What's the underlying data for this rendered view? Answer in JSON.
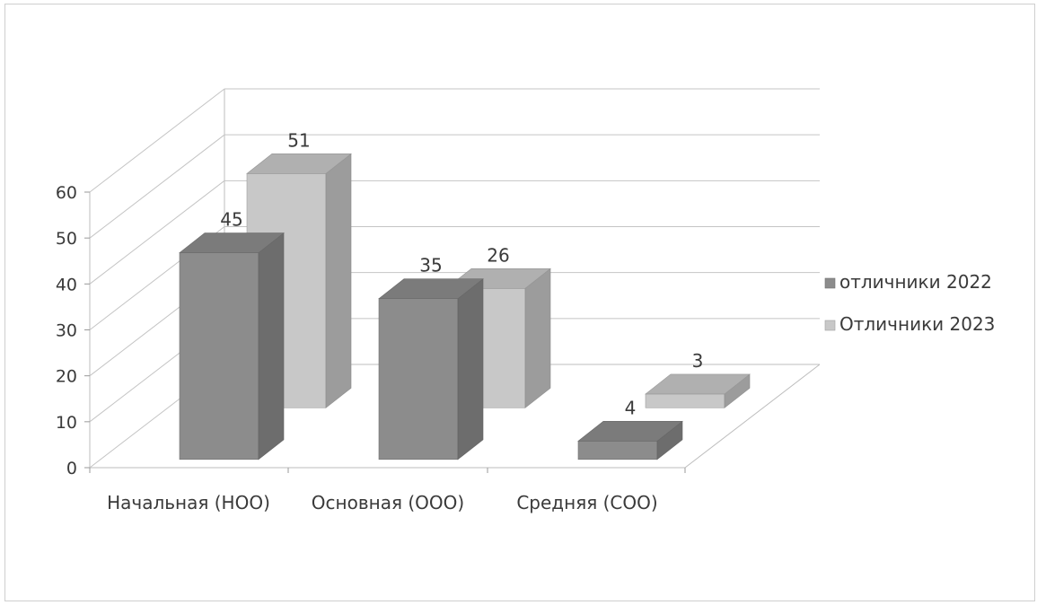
{
  "chart_data": {
    "type": "bar",
    "categories": [
      "Начальная (НОО)",
      "Основная (ООО)",
      "Средняя (СОО)"
    ],
    "series": [
      {
        "name": "отличники 2022",
        "values": [
          45,
          35,
          4
        ],
        "color": "#8c8c8c"
      },
      {
        "name": "Отличники 2023",
        "values": [
          51,
          26,
          3
        ],
        "color": "#c8c8c8"
      }
    ],
    "ylim": [
      0,
      60
    ],
    "yticks": [
      "0",
      "10",
      "20",
      "30",
      "40",
      "50",
      "60"
    ],
    "grid": true,
    "legend_position": "right",
    "style": "3d-clustered-column"
  }
}
